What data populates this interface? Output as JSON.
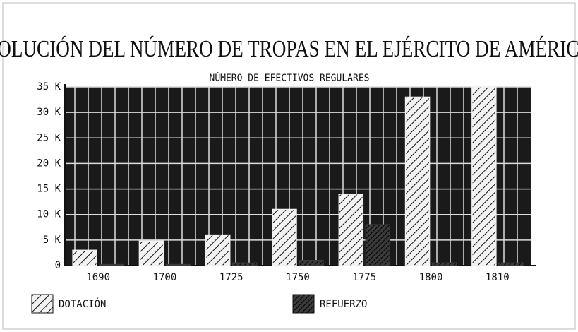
{
  "chart_data": {
    "type": "bar",
    "title": "EVOLUCIÓN DEL NÚMERO DE TROPAS EN EL EJÉRCITO DE AMÉRICA",
    "subtitle": "NÚMERO DE EFECTIVOS REGULARES",
    "categories": [
      "1690",
      "1700",
      "1725",
      "1750",
      "1775",
      "1800",
      "1810"
    ],
    "series": [
      {
        "name": "DOTACIÓN",
        "color": "#f2f2f2",
        "values": [
          3000,
          4800,
          6000,
          11000,
          14000,
          33000,
          35000
        ]
      },
      {
        "name": "REFUERZO",
        "color": "#3a3a3a",
        "values": [
          200,
          200,
          500,
          1000,
          8000,
          500,
          500
        ]
      }
    ],
    "ylim": [
      0,
      35000
    ],
    "yticks": [
      0,
      {
        "value": 5000,
        "label": "5 K"
      },
      {
        "value": 10000,
        "label": "10 K"
      },
      {
        "value": 15000,
        "label": "15 K"
      },
      {
        "value": 20000,
        "label": "20 K"
      },
      {
        "value": 25000,
        "label": "25 K"
      },
      {
        "value": 30000,
        "label": "30 K"
      },
      {
        "value": 35000,
        "label": "35 K"
      }
    ],
    "grid": true
  }
}
